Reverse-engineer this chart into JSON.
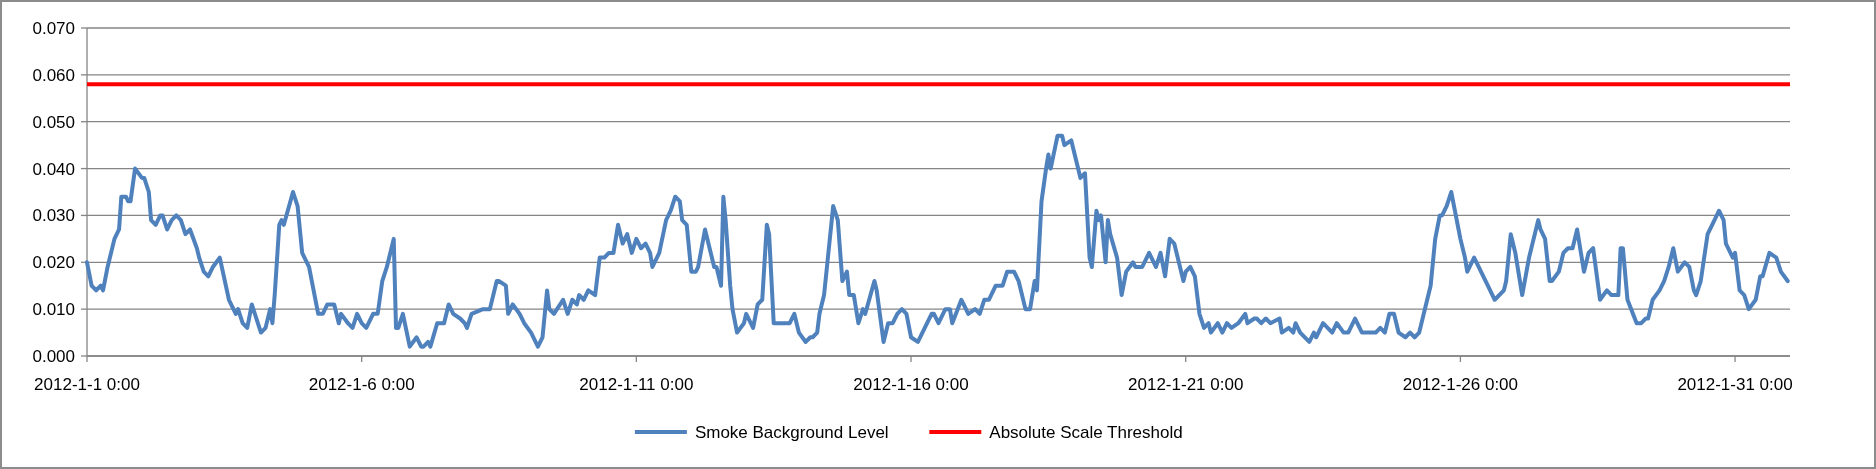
{
  "chart_data": {
    "type": "line",
    "x": [
      "2012-01-01T00:00",
      "2012-01-01T02:00",
      "2012-01-01T04:00",
      "2012-01-01T06:00",
      "2012-01-01T07:00",
      "2012-01-01T09:00",
      "2012-01-01T12:00",
      "2012-01-01T14:00",
      "2012-01-01T15:00",
      "2012-01-01T17:00",
      "2012-01-01T18:00",
      "2012-01-01T19:00",
      "2012-01-01T21:00",
      "2012-01-02T00:00",
      "2012-01-02T01:00",
      "2012-01-02T03:00",
      "2012-01-02T04:00",
      "2012-01-02T06:00",
      "2012-01-02T08:00",
      "2012-01-02T09:00",
      "2012-01-02T11:00",
      "2012-01-02T13:00",
      "2012-01-02T15:00",
      "2012-01-02T17:00",
      "2012-01-02T19:00",
      "2012-01-02T21:00",
      "2012-01-03T00:00",
      "2012-01-03T01:00",
      "2012-01-03T03:00",
      "2012-01-03T05:00",
      "2012-01-03T07:00",
      "2012-01-03T10:00",
      "2012-01-03T14:00",
      "2012-01-03T17:00",
      "2012-01-03T18:00",
      "2012-01-03T20:00",
      "2012-01-03T22:00",
      "2012-01-04T00:00",
      "2012-01-04T04:00",
      "2012-01-04T06:00",
      "2012-01-04T08:00",
      "2012-01-04T09:00",
      "2012-01-04T10:00",
      "2012-01-04T12:00",
      "2012-01-04T13:00",
      "2012-01-04T14:00",
      "2012-01-04T18:00",
      "2012-01-04T20:00",
      "2012-01-04T22:00",
      "2012-01-05T01:00",
      "2012-01-05T05:00",
      "2012-01-05T07:00",
      "2012-01-05T09:00",
      "2012-01-05T12:00",
      "2012-01-05T14:00",
      "2012-01-05T15:00",
      "2012-01-05T18:00",
      "2012-01-05T20:00",
      "2012-01-05T22:00",
      "2012-01-06T00:00",
      "2012-01-06T02:00",
      "2012-01-06T05:00",
      "2012-01-06T07:00",
      "2012-01-06T09:00",
      "2012-01-06T11:00",
      "2012-01-06T14:00",
      "2012-01-06T15:00",
      "2012-01-06T16:00",
      "2012-01-06T18:00",
      "2012-01-06T21:00",
      "2012-01-07T00:00",
      "2012-01-07T02:00",
      "2012-01-07T03:00",
      "2012-01-07T05:00",
      "2012-01-07T06:00",
      "2012-01-07T09:00",
      "2012-01-07T12:00",
      "2012-01-07T14:00",
      "2012-01-07T16:00",
      "2012-01-07T19:00",
      "2012-01-07T21:00",
      "2012-01-07T22:00",
      "2012-01-08T00:00",
      "2012-01-08T05:00",
      "2012-01-08T08:00",
      "2012-01-08T11:00",
      "2012-01-08T12:00",
      "2012-01-08T15:00",
      "2012-01-08T16:00",
      "2012-01-08T18:00",
      "2012-01-08T21:00",
      "2012-01-08T23:00",
      "2012-01-09T02:00",
      "2012-01-09T05:00",
      "2012-01-09T07:00",
      "2012-01-09T09:00",
      "2012-01-09T10:00",
      "2012-01-09T12:00",
      "2012-01-09T16:00",
      "2012-01-09T18:00",
      "2012-01-09T20:00",
      "2012-01-09T22:00",
      "2012-01-09T23:00",
      "2012-01-10T01:00",
      "2012-01-10T03:00",
      "2012-01-10T06:00",
      "2012-01-10T08:00",
      "2012-01-10T10:00",
      "2012-01-10T12:00",
      "2012-01-10T14:00",
      "2012-01-10T16:00",
      "2012-01-10T18:00",
      "2012-01-10T20:00",
      "2012-01-10T22:00",
      "2012-01-11T00:00",
      "2012-01-11T02:00",
      "2012-01-11T04:00",
      "2012-01-11T06:00",
      "2012-01-11T07:00",
      "2012-01-11T10:00",
      "2012-01-11T13:00",
      "2012-01-11T15:00",
      "2012-01-11T17:00",
      "2012-01-11T19:00",
      "2012-01-11T20:00",
      "2012-01-11T22:00",
      "2012-01-12T00:00",
      "2012-01-12T02:00",
      "2012-01-12T03:00",
      "2012-01-12T06:00",
      "2012-01-12T08:00",
      "2012-01-12T10:00",
      "2012-01-12T11:00",
      "2012-01-12T13:00",
      "2012-01-12T14:00",
      "2012-01-12T15:00",
      "2012-01-12T17:00",
      "2012-01-12T18:00",
      "2012-01-12T20:00",
      "2012-01-12T23:00",
      "2012-01-13T00:00",
      "2012-01-13T03:00",
      "2012-01-13T05:00",
      "2012-01-13T07:00",
      "2012-01-13T09:00",
      "2012-01-13T10:00",
      "2012-01-13T12:00",
      "2012-01-13T15:00",
      "2012-01-13T19:00",
      "2012-01-13T21:00",
      "2012-01-13T23:00",
      "2012-01-14T02:00",
      "2012-01-14T04:00",
      "2012-01-14T05:00",
      "2012-01-14T07:00",
      "2012-01-14T08:00",
      "2012-01-14T10:00",
      "2012-01-14T14:00",
      "2012-01-14T16:00",
      "2012-01-14T18:00",
      "2012-01-14T20:00",
      "2012-01-14T21:00",
      "2012-01-14T23:00",
      "2012-01-15T01:00",
      "2012-01-15T03:00",
      "2012-01-15T04:00",
      "2012-01-15T08:00",
      "2012-01-15T09:00",
      "2012-01-15T12:00",
      "2012-01-15T14:00",
      "2012-01-15T16:00",
      "2012-01-15T18:00",
      "2012-01-15T20:00",
      "2012-01-15T22:00",
      "2012-01-16T00:00",
      "2012-01-16T03:00",
      "2012-01-16T06:00",
      "2012-01-16T09:00",
      "2012-01-16T10:00",
      "2012-01-16T12:00",
      "2012-01-16T15:00",
      "2012-01-16T17:00",
      "2012-01-16T18:00",
      "2012-01-16T22:00",
      "2012-01-16T23:00",
      "2012-01-17T01:00",
      "2012-01-17T04:00",
      "2012-01-17T06:00",
      "2012-01-17T08:00",
      "2012-01-17T10:00",
      "2012-01-17T13:00",
      "2012-01-17T16:00",
      "2012-01-17T18:00",
      "2012-01-17T21:00",
      "2012-01-17T23:00",
      "2012-01-18T02:00",
      "2012-01-18T04:00",
      "2012-01-18T06:00",
      "2012-01-18T07:00",
      "2012-01-18T09:00",
      "2012-01-18T11:00",
      "2012-01-18T12:00",
      "2012-01-18T13:00",
      "2012-01-18T16:00",
      "2012-01-18T18:00",
      "2012-01-18T19:00",
      "2012-01-18T22:00",
      "2012-01-19T01:00",
      "2012-01-19T02:00",
      "2012-01-19T04:00",
      "2012-01-19T06:00",
      "2012-01-19T07:00",
      "2012-01-19T09:00",
      "2012-01-19T10:00",
      "2012-01-19T11:00",
      "2012-01-19T13:00",
      "2012-01-19T14:00",
      "2012-01-19T15:00",
      "2012-01-19T18:00",
      "2012-01-19T20:00",
      "2012-01-19T22:00",
      "2012-01-20T01:00",
      "2012-01-20T02:00",
      "2012-01-20T05:00",
      "2012-01-20T08:00",
      "2012-01-20T11:00",
      "2012-01-20T13:00",
      "2012-01-20T15:00",
      "2012-01-20T17:00",
      "2012-01-20T19:00",
      "2012-01-20T23:00",
      "2012-01-21T00:00",
      "2012-01-21T02:00",
      "2012-01-21T04:00",
      "2012-01-21T06:00",
      "2012-01-21T08:00",
      "2012-01-21T10:00",
      "2012-01-21T11:00",
      "2012-01-21T14:00",
      "2012-01-21T16:00",
      "2012-01-21T18:00",
      "2012-01-21T20:00",
      "2012-01-21T23:00",
      "2012-01-22T02:00",
      "2012-01-22T03:00",
      "2012-01-22T06:00",
      "2012-01-22T07:00",
      "2012-01-22T09:00",
      "2012-01-22T11:00",
      "2012-01-22T13:00",
      "2012-01-22T17:00",
      "2012-01-22T18:00",
      "2012-01-22T21:00",
      "2012-01-22T23:00",
      "2012-01-23T00:00",
      "2012-01-23T02:00",
      "2012-01-23T06:00",
      "2012-01-23T08:00",
      "2012-01-23T09:00",
      "2012-01-23T12:00",
      "2012-01-23T14:00",
      "2012-01-23T16:00",
      "2012-01-23T18:00",
      "2012-01-23T21:00",
      "2012-01-23T23:00",
      "2012-01-24T02:00",
      "2012-01-24T05:00",
      "2012-01-24T08:00",
      "2012-01-24T11:00",
      "2012-01-24T13:00",
      "2012-01-24T15:00",
      "2012-01-24T17:00",
      "2012-01-24T19:00",
      "2012-01-24T21:00",
      "2012-01-25T00:00",
      "2012-01-25T02:00",
      "2012-01-25T04:00",
      "2012-01-25T06:00",
      "2012-01-25T08:00",
      "2012-01-25T11:00",
      "2012-01-25T13:00",
      "2012-01-25T15:00",
      "2012-01-25T16:00",
      "2012-01-25T18:00",
      "2012-01-25T20:00",
      "2012-01-25T22:00",
      "2012-01-26T00:00",
      "2012-01-26T02:00",
      "2012-01-26T03:00",
      "2012-01-26T05:00",
      "2012-01-26T06:00",
      "2012-01-26T08:00",
      "2012-01-26T09:00",
      "2012-01-26T12:00",
      "2012-01-26T15:00",
      "2012-01-26T19:00",
      "2012-01-26T20:00",
      "2012-01-26T22:00",
      "2012-01-27T00:00",
      "2012-01-27T03:00",
      "2012-01-27T06:00",
      "2012-01-27T10:00",
      "2012-01-27T11:00",
      "2012-01-27T13:00",
      "2012-01-27T15:00",
      "2012-01-27T16:00",
      "2012-01-27T19:00",
      "2012-01-27T21:00",
      "2012-01-27T23:00",
      "2012-01-28T01:00",
      "2012-01-28T03:00",
      "2012-01-28T06:00",
      "2012-01-28T08:00",
      "2012-01-28T10:00",
      "2012-01-28T13:00",
      "2012-01-28T16:00",
      "2012-01-28T18:00",
      "2012-01-28T21:00",
      "2012-01-28T22:00",
      "2012-01-28T23:00",
      "2012-01-29T01:00",
      "2012-01-29T05:00",
      "2012-01-29T07:00",
      "2012-01-29T09:00",
      "2012-01-29T10:00",
      "2012-01-29T12:00",
      "2012-01-29T15:00",
      "2012-01-29T17:00",
      "2012-01-29T19:00",
      "2012-01-29T21:00",
      "2012-01-29T23:00",
      "2012-01-30T02:00",
      "2012-01-30T04:00",
      "2012-01-30T06:00",
      "2012-01-30T07:00",
      "2012-01-30T09:00",
      "2012-01-30T12:00",
      "2012-01-30T14:00",
      "2012-01-30T17:00",
      "2012-01-30T19:00",
      "2012-01-30T20:00",
      "2012-01-30T23:00",
      "2012-01-31T00:00",
      "2012-01-31T02:00",
      "2012-01-31T04:00",
      "2012-01-31T06:00",
      "2012-01-31T09:00",
      "2012-01-31T11:00",
      "2012-01-31T12:00",
      "2012-01-31T15:00",
      "2012-01-31T18:00",
      "2012-01-31T20:00",
      "2012-01-31T23:00"
    ],
    "series": [
      {
        "name": "Smoke Background Level",
        "color": "#4f81bd",
        "values": [
          0.02,
          0.015,
          0.014,
          0.015,
          0.014,
          0.019,
          0.025,
          0.027,
          0.034,
          0.034,
          0.033,
          0.033,
          0.04,
          0.038,
          0.038,
          0.035,
          0.029,
          0.028,
          0.03,
          0.03,
          0.027,
          0.029,
          0.03,
          0.029,
          0.026,
          0.027,
          0.023,
          0.021,
          0.018,
          0.017,
          0.019,
          0.021,
          0.012,
          0.009,
          0.01,
          0.007,
          0.006,
          0.011,
          0.005,
          0.006,
          0.01,
          0.007,
          0.013,
          0.028,
          0.029,
          0.028,
          0.035,
          0.032,
          0.022,
          0.019,
          0.009,
          0.009,
          0.011,
          0.011,
          0.007,
          0.009,
          0.007,
          0.006,
          0.009,
          0.007,
          0.006,
          0.009,
          0.009,
          0.016,
          0.019,
          0.025,
          0.006,
          0.006,
          0.009,
          0.002,
          0.004,
          0.002,
          0.002,
          0.003,
          0.002,
          0.007,
          0.007,
          0.011,
          0.009,
          0.008,
          0.007,
          0.006,
          0.009,
          0.01,
          0.01,
          0.016,
          0.016,
          0.015,
          0.009,
          0.011,
          0.009,
          0.007,
          0.005,
          0.002,
          0.004,
          0.014,
          0.01,
          0.009,
          0.012,
          0.009,
          0.012,
          0.011,
          0.013,
          0.012,
          0.014,
          0.013,
          0.021,
          0.021,
          0.022,
          0.022,
          0.028,
          0.024,
          0.026,
          0.022,
          0.025,
          0.023,
          0.024,
          0.022,
          0.019,
          0.022,
          0.029,
          0.031,
          0.034,
          0.033,
          0.029,
          0.028,
          0.018,
          0.018,
          0.019,
          0.027,
          0.023,
          0.019,
          0.019,
          0.015,
          0.034,
          0.029,
          0.015,
          0.01,
          0.005,
          0.007,
          0.009,
          0.006,
          0.011,
          0.012,
          0.028,
          0.026,
          0.007,
          0.007,
          0.007,
          0.009,
          0.005,
          0.003,
          0.004,
          0.004,
          0.005,
          0.009,
          0.013,
          0.032,
          0.029,
          0.016,
          0.018,
          0.013,
          0.013,
          0.007,
          0.01,
          0.009,
          0.016,
          0.014,
          0.003,
          0.007,
          0.007,
          0.009,
          0.01,
          0.009,
          0.004,
          0.003,
          0.006,
          0.009,
          0.009,
          0.007,
          0.01,
          0.01,
          0.007,
          0.012,
          0.011,
          0.009,
          0.01,
          0.009,
          0.012,
          0.012,
          0.015,
          0.015,
          0.018,
          0.018,
          0.016,
          0.01,
          0.01,
          0.016,
          0.014,
          0.033,
          0.04,
          0.043,
          0.04,
          0.047,
          0.047,
          0.045,
          0.046,
          0.04,
          0.038,
          0.039,
          0.021,
          0.019,
          0.031,
          0.029,
          0.03,
          0.02,
          0.029,
          0.026,
          0.021,
          0.013,
          0.018,
          0.02,
          0.019,
          0.019,
          0.022,
          0.019,
          0.022,
          0.017,
          0.025,
          0.024,
          0.016,
          0.018,
          0.019,
          0.017,
          0.009,
          0.006,
          0.007,
          0.005,
          0.007,
          0.005,
          0.007,
          0.006,
          0.007,
          0.009,
          0.007,
          0.008,
          0.008,
          0.007,
          0.008,
          0.007,
          0.008,
          0.005,
          0.006,
          0.005,
          0.007,
          0.005,
          0.003,
          0.005,
          0.004,
          0.007,
          0.006,
          0.005,
          0.007,
          0.005,
          0.005,
          0.008,
          0.005,
          0.005,
          0.005,
          0.006,
          0.005,
          0.009,
          0.009,
          0.005,
          0.004,
          0.005,
          0.004,
          0.005,
          0.009,
          0.015,
          0.025,
          0.03,
          0.03,
          0.032,
          0.035,
          0.03,
          0.025,
          0.021,
          0.018,
          0.02,
          0.021,
          0.019,
          0.018,
          0.015,
          0.012,
          0.014,
          0.016,
          0.026,
          0.022,
          0.013,
          0.021,
          0.029,
          0.027,
          0.025,
          0.016,
          0.016,
          0.018,
          0.022,
          0.023,
          0.023,
          0.027,
          0.018,
          0.022,
          0.023,
          0.012,
          0.014,
          0.013,
          0.013,
          0.023,
          0.023,
          0.012,
          0.007,
          0.007,
          0.008,
          0.008,
          0.012,
          0.014,
          0.016,
          0.019,
          0.023,
          0.018,
          0.02,
          0.019,
          0.014,
          0.013,
          0.016,
          0.026,
          0.028,
          0.031,
          0.029,
          0.024,
          0.021,
          0.022,
          0.014,
          0.013,
          0.01,
          0.012,
          0.017,
          0.017,
          0.022,
          0.021,
          0.018,
          0.016
        ]
      }
    ],
    "xlim": [
      "2012-01-01",
      "2012-02-01"
    ],
    "xticks": [
      {
        "value": "2012-01-01",
        "label": "2012-1-1 0:00"
      },
      {
        "value": "2012-01-06",
        "label": "2012-1-6 0:00"
      },
      {
        "value": "2012-01-11",
        "label": "2012-1-11 0:00"
      },
      {
        "value": "2012-01-16",
        "label": "2012-1-16 0:00"
      },
      {
        "value": "2012-01-21",
        "label": "2012-1-21 0:00"
      },
      {
        "value": "2012-01-26",
        "label": "2012-1-26 0:00"
      },
      {
        "value": "2012-01-31",
        "label": "2012-1-31 0:00"
      }
    ],
    "ylim": [
      0,
      0.07
    ],
    "yticks": [
      {
        "value": 0,
        "label": "0.000"
      },
      {
        "value": 0.01,
        "label": "0.010"
      },
      {
        "value": 0.02,
        "label": "0.020"
      },
      {
        "value": 0.03,
        "label": "0.030"
      },
      {
        "value": 0.04,
        "label": "0.040"
      },
      {
        "value": 0.05,
        "label": "0.050"
      },
      {
        "value": 0.06,
        "label": "0.060"
      },
      {
        "value": 0.07,
        "label": "0.070"
      }
    ],
    "ref_lines": [
      {
        "axis": "y",
        "value": 0.058,
        "label": "Absolute Scale Threshold",
        "color": "#ff0000"
      }
    ],
    "grid": "y",
    "legend": "bottom",
    "marker": "none",
    "line_style": "solid"
  }
}
